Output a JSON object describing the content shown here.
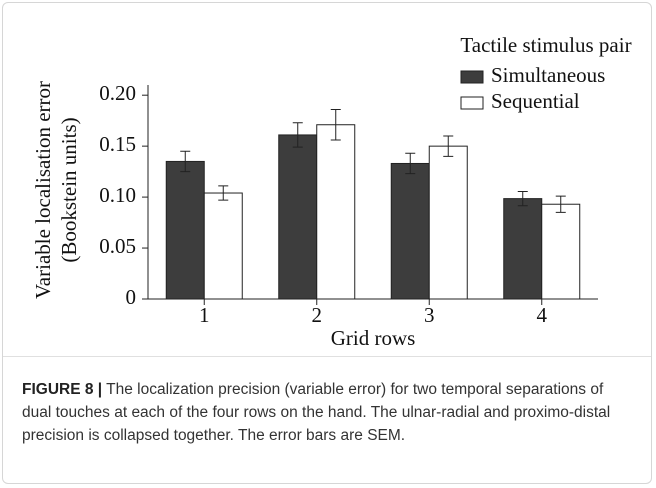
{
  "chart_data": {
    "type": "bar",
    "ylabel": [
      "Variable localisation error",
      "(Bookstein units)"
    ],
    "xlabel": "Grid rows",
    "legend_title": "Tactile stimulus pair",
    "legend": "upper right",
    "categories": [
      "1",
      "2",
      "3",
      "4"
    ],
    "series": [
      {
        "name": "Simultaneous",
        "color": "#3d3d3d",
        "values": [
          0.135,
          0.161,
          0.133,
          0.0985
        ],
        "errors": [
          0.01,
          0.012,
          0.01,
          0.007
        ]
      },
      {
        "name": "Sequential",
        "color": "#ffffff",
        "values": [
          0.104,
          0.171,
          0.15,
          0.093
        ],
        "errors": [
          0.007,
          0.015,
          0.01,
          0.008
        ]
      }
    ],
    "ylim": [
      0,
      0.21
    ],
    "yticks": [
      0,
      0.05,
      {
        "value": 0.1,
        "label": "0.10"
      },
      0.15,
      {
        "value": 0.2,
        "label": "0.20"
      }
    ],
    "grid": false
  },
  "caption": {
    "label": "FIGURE 8 |",
    "text": "The localization precision (variable error) for two temporal separations of dual touches at each of the four rows on the hand. The ulnar-radial and proximo-distal precision is collapsed together. The error bars are SEM."
  }
}
